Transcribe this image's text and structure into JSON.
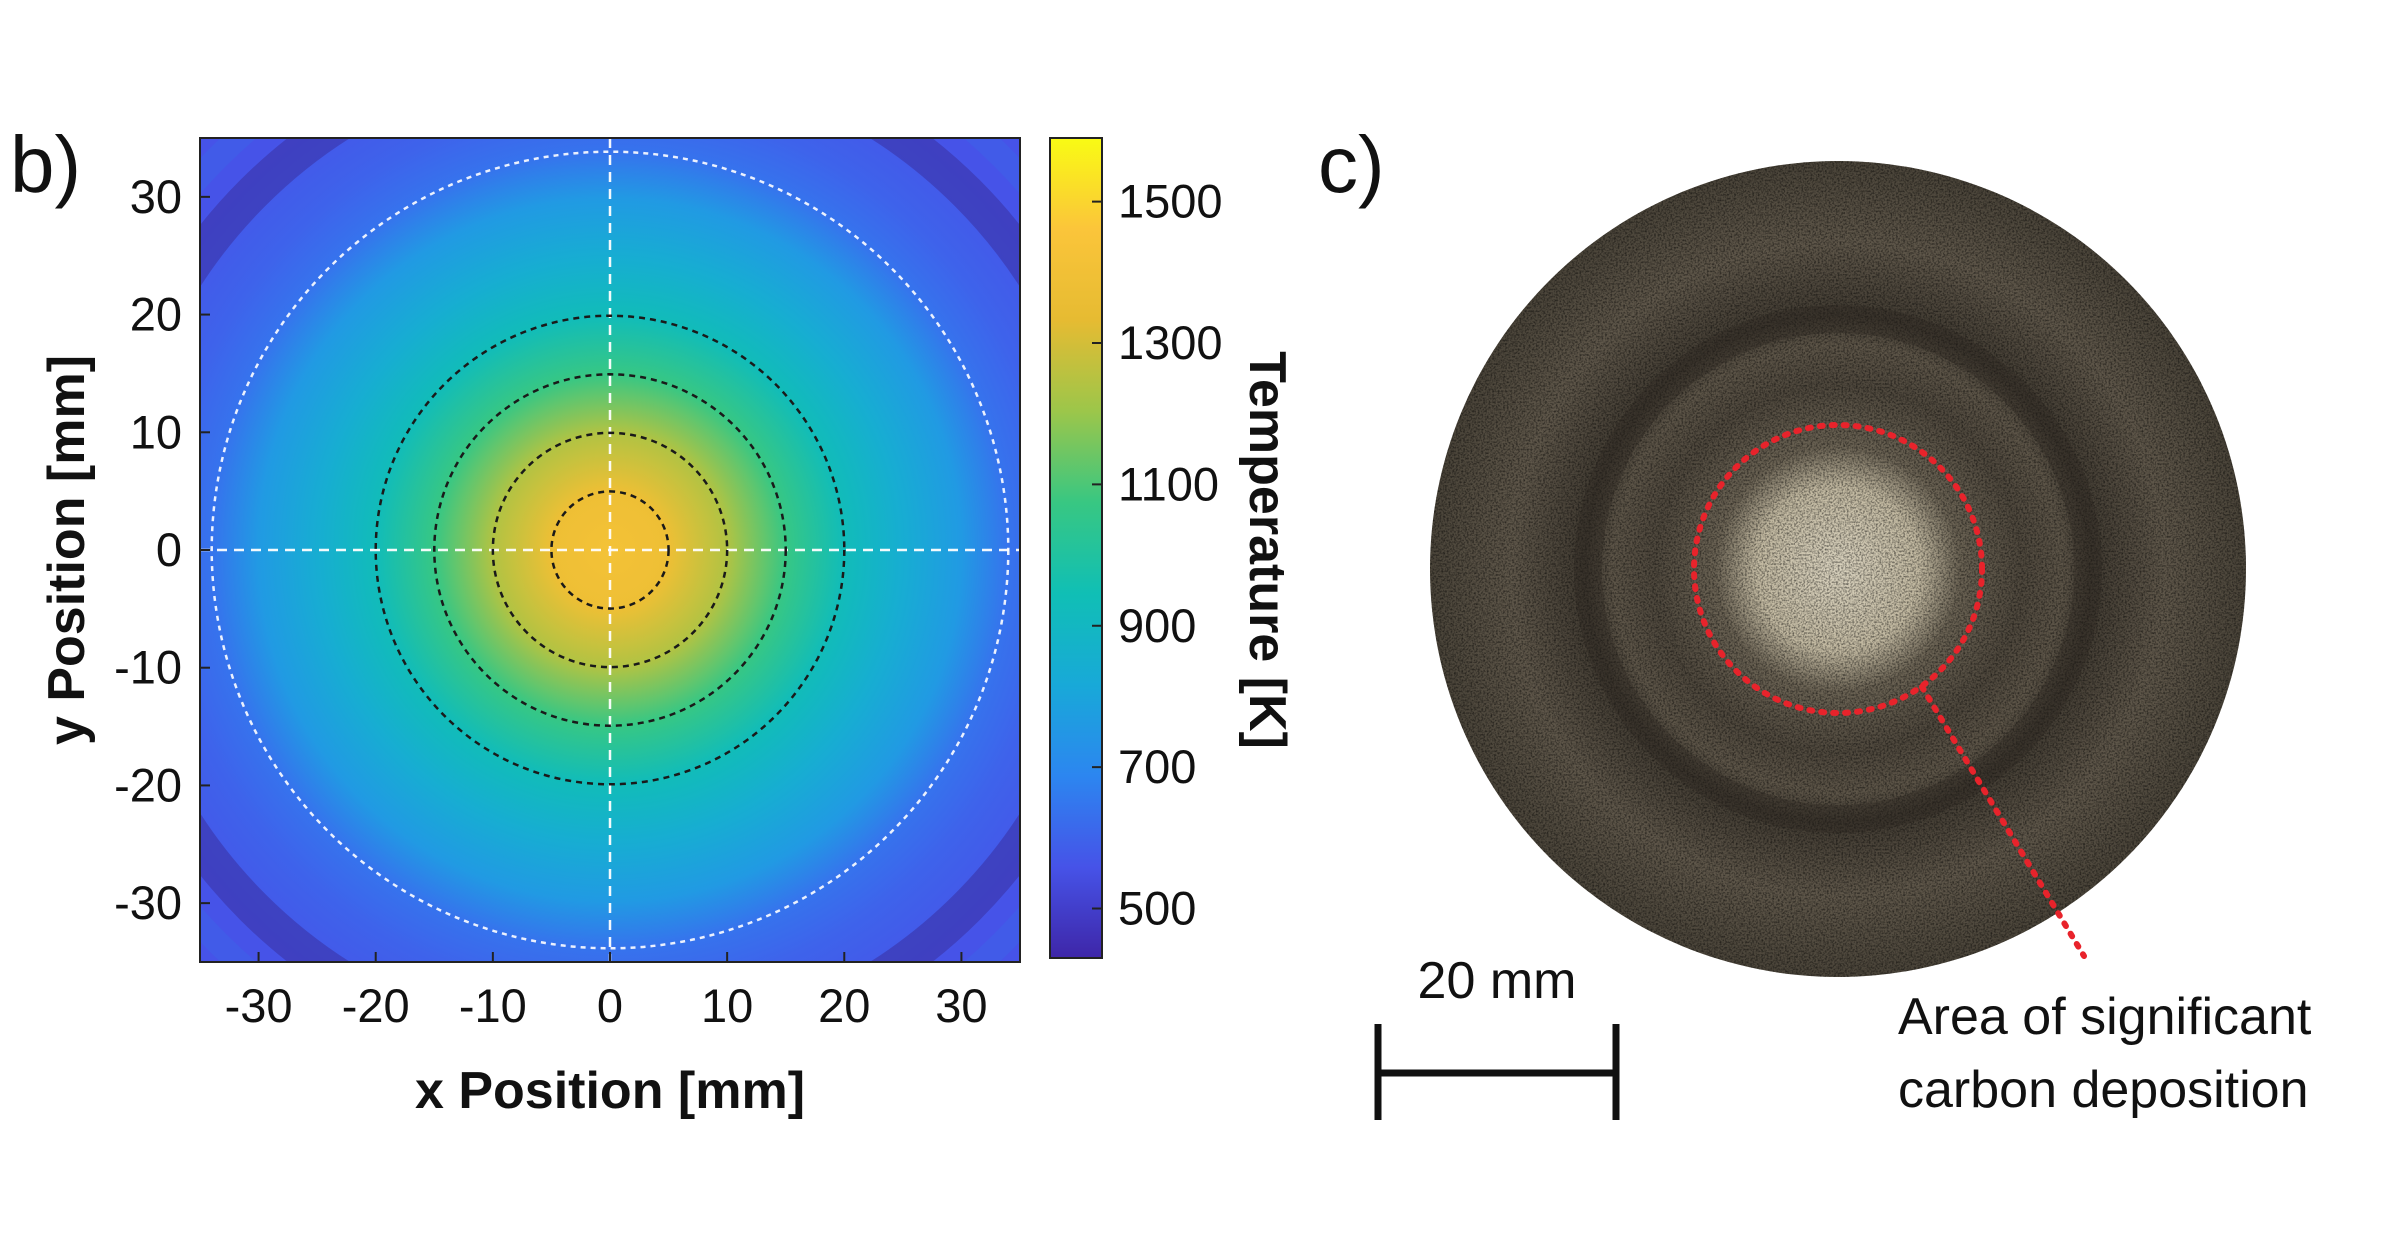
{
  "chart_data": [
    {
      "panel_label": "b)",
      "type": "heatmap",
      "xlabel": "x Position [mm]",
      "ylabel": "y Position [mm]",
      "xlim": [
        -35,
        35
      ],
      "ylim": [
        -35,
        35
      ],
      "xticks": [
        -30,
        -20,
        -10,
        0,
        10,
        20,
        30
      ],
      "yticks": [
        30,
        20,
        10,
        0,
        -10,
        -20,
        -30
      ],
      "colorbar": {
        "label": "Temperature [K]",
        "range": [
          430,
          1590
        ],
        "ticks": [
          1500,
          1300,
          1100,
          900,
          700,
          500
        ],
        "colormap": [
          "#3e26a8",
          "#4653e8",
          "#2c86f0",
          "#18a9d8",
          "#10bfb5",
          "#38c782",
          "#9cc64a",
          "#e6bb32",
          "#fbc53a",
          "#f9fb14"
        ]
      },
      "temperature_profile": {
        "center_K": 1420,
        "radius_mm": [
          0,
          5,
          10,
          15,
          20,
          25,
          30,
          34,
          38,
          45
        ],
        "temperature_K": [
          1420,
          1380,
          1240,
          1070,
          930,
          840,
          760,
          640,
          600,
          560
        ]
      },
      "hotspot_center_mm": [
        0,
        0
      ],
      "contour_radii_mm": [
        5,
        10,
        15,
        20
      ],
      "outer_circle_radius_mm": 34,
      "crosshair_at_mm": [
        0,
        0
      ]
    },
    {
      "panel_label": "c)",
      "type": "photo",
      "scale_bar_label": "20 mm",
      "annotation_line1": "Area of significant",
      "annotation_line2": "carbon deposition",
      "annotation_color": "#e8232b"
    }
  ]
}
